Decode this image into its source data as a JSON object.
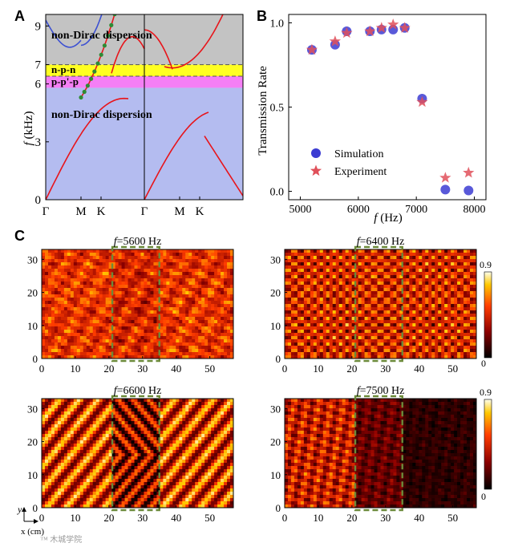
{
  "panels": {
    "a": "A",
    "b": "B",
    "c": "C"
  },
  "chart_data": [
    {
      "type": "line",
      "id": "A",
      "title": "",
      "xlabel": "",
      "ylabel_f": "f",
      "ylabel_unit": " (kHz)",
      "ylim": [
        0,
        9.6
      ],
      "yticks": [
        0,
        3,
        6,
        7,
        9
      ],
      "ytick_labels": [
        "0",
        "3",
        "6",
        "7",
        "9"
      ],
      "xtick_labels": [
        "Γ",
        "M",
        "K",
        "Γ",
        "M",
        "K"
      ],
      "region_labels": [
        "non-Dirac dispersion",
        "n-p-n",
        "p-p'-p",
        "non-Dirac dispersion"
      ],
      "regions": [
        {
          "name": "non-Dirac dispersion",
          "ymin": 0,
          "ymax": 5.8,
          "color": "#b4bcf0"
        },
        {
          "name": "p-p'-p",
          "ymin": 5.8,
          "ymax": 6.4,
          "color": "#f57ff5"
        },
        {
          "name": "n-p-n",
          "ymin": 6.4,
          "ymax": 7.0,
          "color": "#ffff22"
        },
        {
          "name": "non-Dirac dispersion",
          "ymin": 7.0,
          "ymax": 9.6,
          "color": "#c3c3c3"
        }
      ],
      "band_color": "#e8141a",
      "upper_band_color": "#3c50d2",
      "marker_color": "#2e8b34"
    },
    {
      "type": "scatter",
      "id": "B",
      "xlabel_f": "f",
      "xlabel_unit": " (Hz)",
      "ylabel": "Transmission Rate",
      "xlim": [
        4800,
        8200
      ],
      "ylim": [
        -0.05,
        1.05
      ],
      "xticks": [
        5000,
        6000,
        7000,
        8000
      ],
      "xtick_labels": [
        "5000",
        "6000",
        "7000",
        "8000"
      ],
      "yticks": [
        0,
        0.5,
        1
      ],
      "ytick_labels": [
        "0.0",
        "0.5",
        "1.0"
      ],
      "series": [
        {
          "name": "Simulation",
          "marker": "circle",
          "color": "#3c3cd2",
          "x": [
            5200,
            5600,
            5800,
            6200,
            6400,
            6600,
            6800,
            7100,
            7500,
            7900
          ],
          "y": [
            0.84,
            0.87,
            0.95,
            0.95,
            0.96,
            0.96,
            0.97,
            0.55,
            0.01,
            0.005
          ]
        },
        {
          "name": "Experiment",
          "marker": "star",
          "color": "#e0505a",
          "x": [
            5200,
            5600,
            5800,
            6200,
            6400,
            6600,
            6800,
            7100,
            7500,
            7900
          ],
          "y": [
            0.84,
            0.89,
            0.94,
            0.95,
            0.97,
            0.99,
            0.97,
            0.53,
            0.08,
            0.11
          ]
        }
      ],
      "legend": [
        "Simulation",
        "Experiment"
      ],
      "legend_position": "bottom-left"
    },
    {
      "type": "heatmap",
      "id": "C",
      "subplots": [
        {
          "f_label": "f",
          "title_value": "=5600 Hz",
          "pattern": "noisy"
        },
        {
          "f_label": "f",
          "title_value": "=6400 Hz",
          "pattern": "spots"
        },
        {
          "f_label": "f",
          "title_value": "=6600 Hz",
          "pattern": "stripes"
        },
        {
          "f_label": "f",
          "title_value": "=7500 Hz",
          "pattern": "decay"
        }
      ],
      "xlim": [
        0,
        57
      ],
      "ylim": [
        0,
        33
      ],
      "xticks": [
        0,
        10,
        20,
        30,
        40,
        50
      ],
      "yticks": [
        0,
        10,
        20,
        30
      ],
      "dashed_box": {
        "xmin": 21,
        "xmax": 35,
        "color": "#6b8a3a"
      },
      "colorbar": {
        "min_label": "0",
        "max_label": "0.9"
      },
      "axis_labels": {
        "x": "x (cm)",
        "y": "y"
      }
    }
  ],
  "watermark": "™ 木城学院"
}
